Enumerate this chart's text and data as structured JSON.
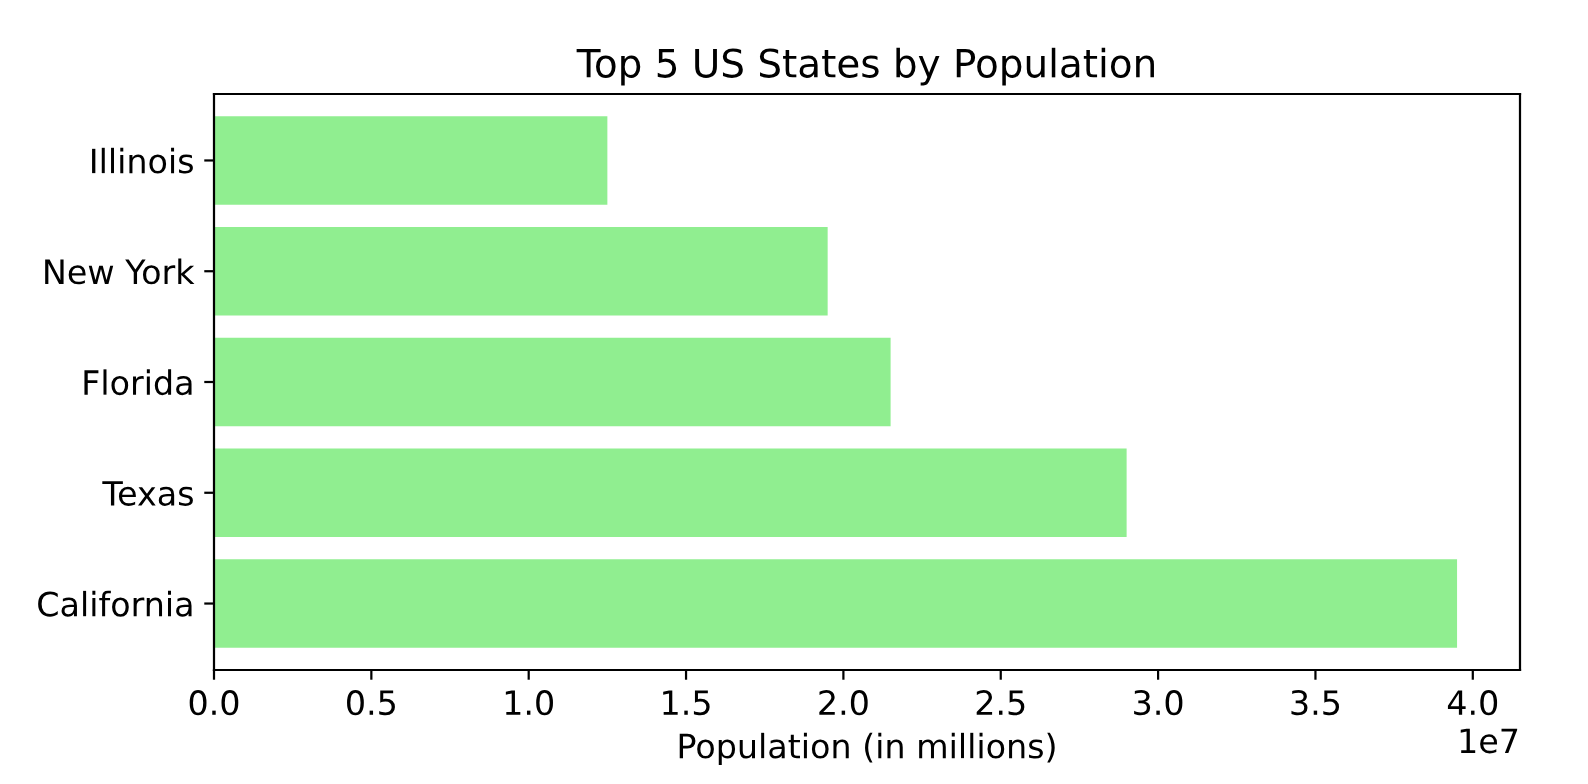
{
  "chart_data": {
    "type": "bar",
    "orientation": "horizontal",
    "title": "Top 5 US States by Population",
    "xlabel": "Population (in millions)",
    "categories": [
      "Illinois",
      "New York",
      "Florida",
      "Texas",
      "California"
    ],
    "values": [
      1.25,
      1.95,
      2.15,
      2.9,
      3.95
    ],
    "color": "#90ee90",
    "xlim": [
      0,
      4.15
    ],
    "xticks": [
      {
        "value": 0,
        "label": "0.0"
      },
      0.5,
      {
        "value": 1,
        "label": "1.0"
      },
      1.5,
      {
        "value": 2,
        "label": "2.0"
      },
      2.5,
      {
        "value": 3,
        "label": "3.0"
      },
      3.5,
      {
        "value": 4,
        "label": "4.0"
      }
    ],
    "annotations": [
      "1e7"
    ],
    "grid": false,
    "legend": false
  }
}
